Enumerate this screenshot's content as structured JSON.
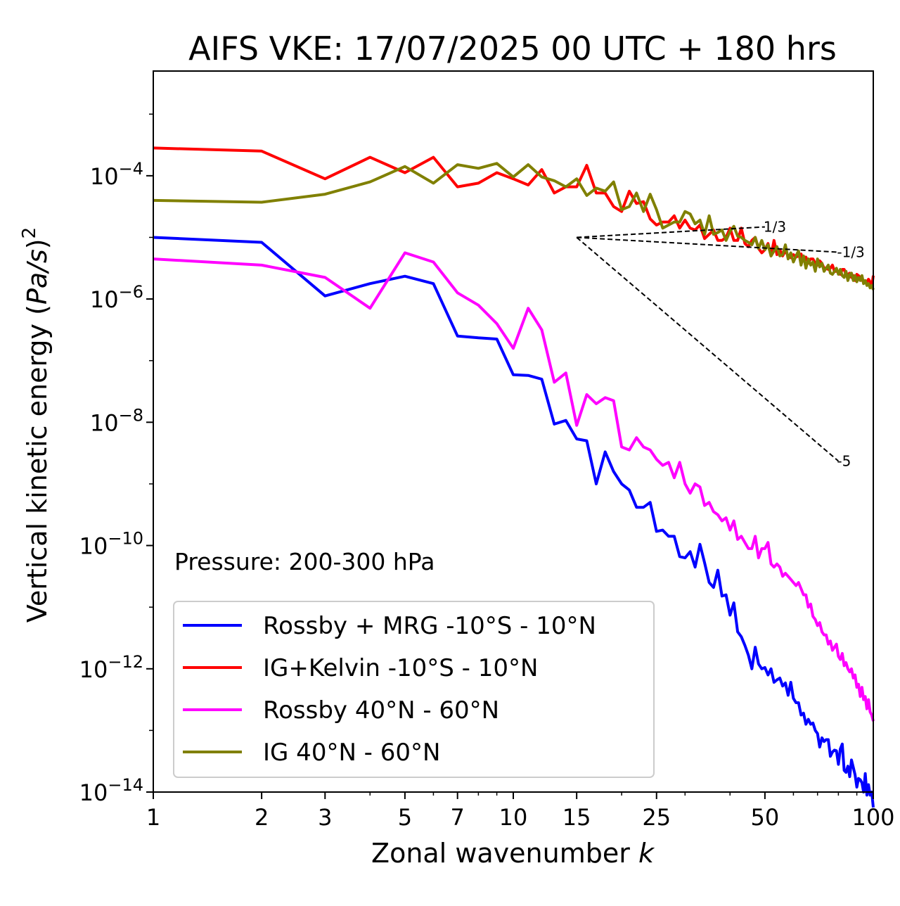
{
  "chart_data": {
    "type": "line",
    "title": "AIFS VKE: 17/07/2025 00 UTC + 180 hrs",
    "xlabel": "Zonal wavenumber ",
    "xlabel_italic": "k",
    "ylabel": "Vertical kinetic energy (",
    "ylabel_unit": "Pa/s",
    "ylabel_close": ")",
    "ylabel_exp": "2",
    "xscale": "log",
    "yscale": "log",
    "xlim": [
      1,
      100
    ],
    "ylim": [
      1e-14,
      0.005
    ],
    "xticks": [
      1,
      2,
      3,
      5,
      7,
      10,
      15,
      25,
      50,
      100
    ],
    "xtick_labels": [
      "1",
      "2",
      "3",
      "5",
      "7",
      "10",
      "15",
      "25",
      "50",
      "100"
    ],
    "yticks": [
      {
        "value": 1e-14,
        "base": "10",
        "exp": "−14"
      },
      {
        "value": 1e-12,
        "base": "10",
        "exp": "−12"
      },
      {
        "value": 1e-10,
        "base": "10",
        "exp": "−10"
      },
      {
        "value": 1e-08,
        "base": "10",
        "exp": "−8"
      },
      {
        "value": 1e-06,
        "base": "10",
        "exp": "−6"
      },
      {
        "value": 0.0001,
        "base": "10",
        "exp": "−4"
      }
    ],
    "annotation": "Pressure: 200-300 hPa",
    "legend_position": "lower-left",
    "grid": false,
    "series": [
      {
        "name": "Rossby + MRG -10°S - 10°N",
        "color": "#0000ff",
        "logy": [
          -5.0,
          -5.08,
          -5.95,
          -5.75,
          -5.63,
          -5.75,
          -6.6,
          -6.63,
          -6.65,
          -7.23,
          -7.24,
          -7.3,
          -8.03,
          -7.97,
          -8.27,
          -8.3,
          -9.0,
          -8.48,
          -8.8,
          -9.0,
          -9.1,
          -9.38,
          -9.38,
          -9.3,
          -9.77,
          -9.75,
          -9.85,
          -9.85,
          -10.18,
          -10.2,
          -10.1,
          -10.35,
          -9.98,
          -10.28,
          -10.6,
          -10.68,
          -10.4,
          -10.82,
          -10.8,
          -11.13,
          -10.93,
          -11.4,
          -11.48,
          -11.62,
          -11.78,
          -12.0,
          -11.65,
          -11.92,
          -12.0,
          -11.98,
          -12.1,
          -12.0,
          -12.22,
          -12.18,
          -12.15,
          -12.28,
          -12.23,
          -12.43,
          -12.22,
          -12.48,
          -12.55,
          -12.55,
          -12.75,
          -12.72,
          -12.9,
          -12.82,
          -12.9,
          -12.88,
          -13.0,
          -13.05,
          -13.27,
          -13.12,
          -13.18,
          -13.15,
          -13.15,
          -13.42,
          -13.35,
          -13.32,
          -13.33,
          -13.55,
          -13.3,
          -13.22,
          -13.65,
          -13.68,
          -13.58,
          -13.75,
          -13.48,
          -13.6,
          -13.72,
          -13.92,
          -13.78,
          -13.8,
          -13.85,
          -14.0,
          -13.7,
          -14.05,
          -13.88,
          -14.05,
          -14.0,
          -14.25
        ]
      },
      {
        "name": "IG+Kelvin -10°S - 10°N",
        "color": "#ff0000",
        "logy": [
          -3.55,
          -3.6,
          -4.05,
          -3.7,
          -3.95,
          -3.7,
          -4.18,
          -4.12,
          -3.95,
          -4.05,
          -4.15,
          -3.9,
          -4.28,
          -4.18,
          -4.18,
          -3.83,
          -4.28,
          -4.28,
          -4.5,
          -4.58,
          -4.25,
          -4.45,
          -4.42,
          -4.7,
          -4.8,
          -4.75,
          -4.75,
          -4.65,
          -4.85,
          -4.72,
          -4.85,
          -4.88,
          -4.8,
          -5.02,
          -4.95,
          -4.88,
          -5.05,
          -5.05,
          -5.0,
          -4.85,
          -5.05,
          -5.05,
          -4.85,
          -5.1,
          -5.15,
          -5.05,
          -5.0,
          -5.18,
          -5.25,
          -5.2,
          -5.1,
          -5.3,
          -5.05,
          -5.28,
          -5.2,
          -5.3,
          -5.22,
          -5.3,
          -5.33,
          -5.28,
          -5.32,
          -5.3,
          -5.27,
          -5.38,
          -5.32,
          -5.42,
          -5.35,
          -5.35,
          -5.42,
          -5.45,
          -5.38,
          -5.42,
          -5.5,
          -5.5,
          -5.52,
          -5.5,
          -5.45,
          -5.55,
          -5.55,
          -5.55,
          -5.6,
          -5.52,
          -5.52,
          -5.6,
          -5.6,
          -5.58,
          -5.65,
          -5.62,
          -5.7,
          -5.6,
          -5.62,
          -5.65,
          -5.7,
          -5.7,
          -5.72,
          -5.72,
          -5.68,
          -5.72,
          -5.8,
          -5.62
        ]
      },
      {
        "name": "Rossby 40°N - 60°N",
        "color": "#ff00ff",
        "logy": [
          -5.35,
          -5.45,
          -5.65,
          -6.15,
          -5.25,
          -5.4,
          -5.9,
          -6.1,
          -6.4,
          -6.8,
          -6.15,
          -6.5,
          -7.35,
          -7.2,
          -8.05,
          -7.55,
          -7.7,
          -7.6,
          -7.65,
          -8.4,
          -8.45,
          -8.25,
          -8.4,
          -8.45,
          -8.6,
          -8.7,
          -8.65,
          -8.9,
          -8.65,
          -9.0,
          -9.15,
          -9.0,
          -9.05,
          -9.35,
          -9.3,
          -9.45,
          -9.5,
          -9.6,
          -9.55,
          -9.75,
          -9.6,
          -9.9,
          -9.85,
          -9.95,
          -10.05,
          -10.05,
          -9.85,
          -10.2,
          -10.05,
          -10.05,
          -9.95,
          -10.3,
          -10.35,
          -10.3,
          -10.35,
          -10.5,
          -10.45,
          -10.5,
          -10.55,
          -10.6,
          -10.65,
          -10.6,
          -10.7,
          -10.8,
          -10.8,
          -11.0,
          -10.95,
          -11.15,
          -11.2,
          -11.3,
          -11.25,
          -11.4,
          -11.45,
          -11.45,
          -11.6,
          -11.55,
          -11.7,
          -11.65,
          -11.6,
          -11.8,
          -11.85,
          -11.75,
          -11.95,
          -11.9,
          -12.0,
          -12.05,
          -12.0,
          -12.15,
          -12.1,
          -12.3,
          -12.25,
          -12.45,
          -12.3,
          -12.5,
          -12.45,
          -12.65,
          -12.5,
          -12.7,
          -12.75,
          -12.85
        ]
      },
      {
        "name": "IG 40°N - 60°N",
        "color": "#808000",
        "logy": [
          -4.4,
          -4.43,
          -4.3,
          -4.1,
          -3.85,
          -4.12,
          -3.82,
          -3.88,
          -3.8,
          -4.02,
          -3.82,
          -4.02,
          -4.08,
          -4.18,
          -4.05,
          -4.32,
          -4.2,
          -4.25,
          -4.1,
          -4.55,
          -4.5,
          -4.28,
          -4.58,
          -4.3,
          -4.55,
          -4.85,
          -4.8,
          -4.75,
          -4.75,
          -4.58,
          -4.62,
          -4.78,
          -4.72,
          -4.95,
          -4.65,
          -4.95,
          -4.92,
          -4.88,
          -5.05,
          -4.9,
          -4.82,
          -4.98,
          -5.0,
          -5.05,
          -5.08,
          -5.12,
          -5.0,
          -5.18,
          -5.05,
          -5.2,
          -5.12,
          -5.3,
          -5.22,
          -5.15,
          -5.3,
          -5.28,
          -5.12,
          -5.35,
          -5.25,
          -5.4,
          -5.3,
          -5.22,
          -5.45,
          -5.3,
          -5.5,
          -5.35,
          -5.45,
          -5.4,
          -5.55,
          -5.35,
          -5.48,
          -5.42,
          -5.55,
          -5.5,
          -5.45,
          -5.58,
          -5.6,
          -5.55,
          -5.5,
          -5.6,
          -5.52,
          -5.62,
          -5.65,
          -5.55,
          -5.7,
          -5.6,
          -5.58,
          -5.7,
          -5.62,
          -5.72,
          -5.65,
          -5.7,
          -5.62,
          -5.75,
          -5.7,
          -5.78,
          -5.75,
          -5.82,
          -5.78,
          -5.85
        ]
      }
    ],
    "reference_lines": [
      {
        "label": "1/3",
        "slope": 0.3333,
        "x": [
          15,
          50
        ],
        "logy": [
          -5.0,
          -4.83
        ]
      },
      {
        "label": "-1/3",
        "slope": -0.3333,
        "x": [
          15,
          80
        ],
        "logy": [
          -5.0,
          -5.24
        ]
      },
      {
        "label": "-5",
        "slope": -5,
        "x": [
          15,
          80
        ],
        "logy": [
          -5.0,
          -8.63
        ]
      }
    ]
  }
}
